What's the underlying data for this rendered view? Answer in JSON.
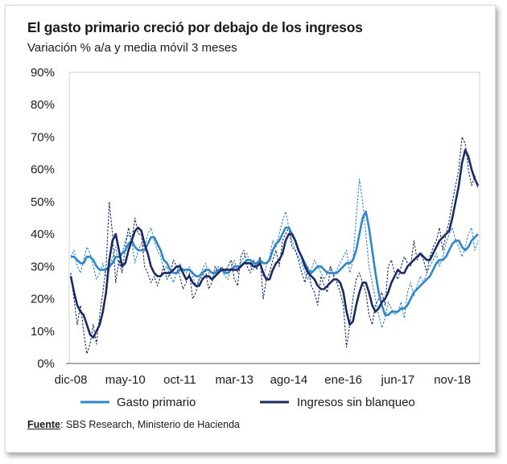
{
  "chart_data": {
    "type": "line",
    "title": "El gasto primario creció por debajo de los ingresos",
    "subtitle": "Variación % a/a y media móvil 3 meses",
    "xlabel": "",
    "ylabel": "",
    "x_tick_labels": [
      "dic-08",
      "may-10",
      "oct-11",
      "mar-13",
      "ago-14",
      "ene-16",
      "jun-17",
      "nov-18"
    ],
    "y_tick_labels": [
      "0%",
      "10%",
      "20%",
      "30%",
      "40%",
      "50%",
      "60%",
      "70%",
      "80%",
      "90%"
    ],
    "ylim": [
      0,
      90
    ],
    "x_start": "dic-08",
    "grid": false,
    "legend_position": "bottom",
    "colors": {
      "gasto": "#2f86c9",
      "ingresos": "#1b2a63"
    },
    "series": [
      {
        "name": "Gasto primario",
        "style": "monthly",
        "values": [
          33,
          35,
          30,
          28,
          32,
          36,
          34,
          30,
          26,
          28,
          31,
          27,
          29,
          33,
          36,
          30,
          34,
          38,
          40,
          38,
          31,
          35,
          37,
          36,
          40,
          42,
          38,
          35,
          33,
          29,
          30,
          27,
          25,
          28,
          31,
          29,
          28,
          30,
          27,
          24,
          26,
          29,
          31,
          28,
          26,
          28,
          30,
          29,
          27,
          26,
          30,
          32,
          28,
          31,
          33,
          34,
          30,
          29,
          31,
          33,
          27,
          30,
          33,
          38,
          36,
          40,
          44,
          47,
          42,
          38,
          35,
          33,
          31,
          28,
          26,
          29,
          32,
          30,
          28,
          26,
          28,
          30,
          27,
          29,
          31,
          33,
          35,
          28,
          32,
          45,
          57,
          50,
          40,
          30,
          25,
          20,
          15,
          11,
          14,
          19,
          17,
          15,
          16,
          19,
          14,
          22,
          25,
          21,
          24,
          27,
          25,
          28,
          30,
          32,
          34,
          30,
          33,
          37,
          40,
          42,
          38,
          36,
          33,
          36,
          40,
          42,
          35,
          38
        ]
      },
      {
        "name": "Gasto primario",
        "style": "moving_average",
        "values": [
          33,
          33,
          32,
          31,
          31,
          33,
          33,
          32,
          30,
          29,
          29,
          29,
          30,
          31,
          33,
          33,
          34,
          35,
          37,
          38,
          36,
          35,
          35,
          35,
          37,
          39,
          39,
          37,
          35,
          32,
          31,
          29,
          28,
          28,
          29,
          29,
          29,
          29,
          28,
          27,
          27,
          28,
          29,
          29,
          28,
          28,
          29,
          29,
          28,
          28,
          29,
          30,
          30,
          30,
          31,
          32,
          32,
          31,
          31,
          32,
          31,
          31,
          32,
          35,
          37,
          38,
          40,
          42,
          42,
          40,
          38,
          35,
          33,
          31,
          29,
          28,
          29,
          30,
          30,
          29,
          28,
          28,
          28,
          28,
          29,
          30,
          31,
          31,
          32,
          35,
          40,
          45,
          47,
          42,
          35,
          28,
          22,
          18,
          15,
          15,
          16,
          16,
          16,
          17,
          17,
          18,
          20,
          22,
          23,
          24,
          25,
          26,
          27,
          29,
          31,
          32,
          32,
          33,
          35,
          37,
          38,
          38,
          36,
          35,
          36,
          38,
          39,
          40
        ]
      },
      {
        "name": "Ingresos sin blanqueo",
        "style": "monthly",
        "values": [
          28,
          20,
          12,
          18,
          10,
          3,
          6,
          12,
          6,
          15,
          22,
          30,
          50,
          40,
          25,
          32,
          28,
          36,
          42,
          38,
          45,
          40,
          40,
          30,
          28,
          25,
          27,
          24,
          27,
          30,
          26,
          28,
          32,
          30,
          27,
          23,
          25,
          28,
          20,
          22,
          26,
          27,
          29,
          23,
          25,
          30,
          28,
          30,
          28,
          30,
          32,
          26,
          24,
          33,
          35,
          30,
          28,
          32,
          29,
          33,
          20,
          26,
          28,
          32,
          35,
          30,
          38,
          40,
          42,
          36,
          35,
          32,
          28,
          25,
          30,
          24,
          22,
          18,
          27,
          24,
          22,
          30,
          27,
          25,
          22,
          18,
          5,
          12,
          20,
          26,
          28,
          25,
          22,
          15,
          12,
          18,
          20,
          22,
          18,
          30,
          32,
          28,
          26,
          30,
          33,
          31,
          30,
          38,
          32,
          34,
          32,
          28,
          33,
          36,
          38,
          42,
          35,
          40,
          44,
          50,
          55,
          60,
          70,
          68,
          60,
          55,
          58,
          54
        ]
      },
      {
        "name": "Ingresos sin blanqueo",
        "style": "moving_average",
        "values": [
          27,
          22,
          18,
          16,
          15,
          12,
          9,
          8,
          10,
          12,
          16,
          22,
          32,
          38,
          40,
          35,
          30,
          31,
          35,
          38,
          41,
          42,
          41,
          37,
          34,
          30,
          28,
          27,
          27,
          28,
          28,
          28,
          29,
          30,
          30,
          28,
          26,
          27,
          25,
          24,
          24,
          26,
          27,
          27,
          26,
          27,
          28,
          29,
          29,
          29,
          29,
          29,
          29,
          30,
          31,
          31,
          31,
          30,
          30,
          31,
          28,
          26,
          26,
          29,
          31,
          32,
          34,
          38,
          40,
          40,
          38,
          35,
          33,
          30,
          28,
          27,
          26,
          24,
          23,
          23,
          24,
          25,
          26,
          26,
          25,
          22,
          16,
          12,
          13,
          18,
          22,
          25,
          25,
          22,
          18,
          16,
          17,
          19,
          20,
          22,
          25,
          27,
          29,
          28,
          28,
          30,
          31,
          32,
          33,
          34,
          33,
          32,
          32,
          34,
          36,
          38,
          39,
          40,
          41,
          45,
          50,
          55,
          62,
          66,
          64,
          60,
          57,
          55
        ]
      }
    ]
  }
}
